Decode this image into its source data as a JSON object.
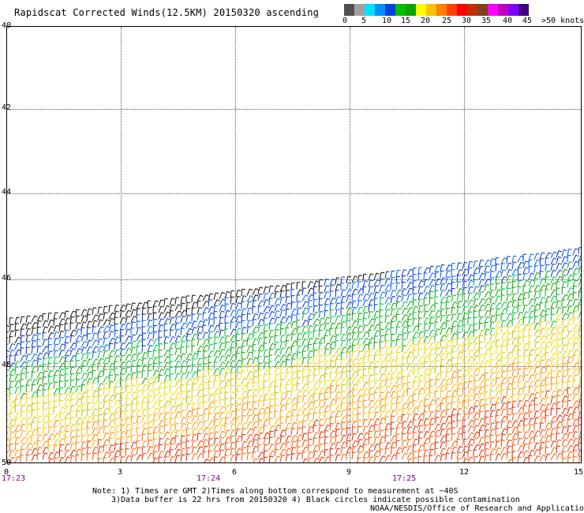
{
  "title": "Rapidscat Corrected Winds(12.5KM) 20150320 ascending",
  "legend": {
    "colors": [
      "#505050",
      "#a0a0a0",
      "#00e0ff",
      "#0090ff",
      "#0040e0",
      "#00c000",
      "#10a000",
      "#ffff00",
      "#ffc000",
      "#ff8000",
      "#ff4000",
      "#ff0000",
      "#c03000",
      "#804020",
      "#ff00ff",
      "#c000c0",
      "#8000ff",
      "#400080"
    ],
    "labels": [
      "0",
      "5",
      "10",
      "15",
      "20",
      "25",
      "30",
      "35",
      "40",
      "45",
      ">50 knots"
    ]
  },
  "map": {
    "lat_labels": [
      "40",
      "42",
      "44",
      "46",
      "48",
      "50"
    ],
    "x_ticks": [
      "0",
      "3",
      "6",
      "9",
      "12",
      "15"
    ],
    "times": [
      "17:23",
      "17:24",
      "17:25"
    ]
  },
  "notes": {
    "line1": "Note: 1) Times are GMT 2)Times along bottom correspond to measurement at ~40S",
    "line2": "3)Data buffer is 22 hrs from 20150320 4) Black circles indicate possible contamination",
    "line3": "NOAA/NESDIS/Office of Research and Applications"
  }
}
